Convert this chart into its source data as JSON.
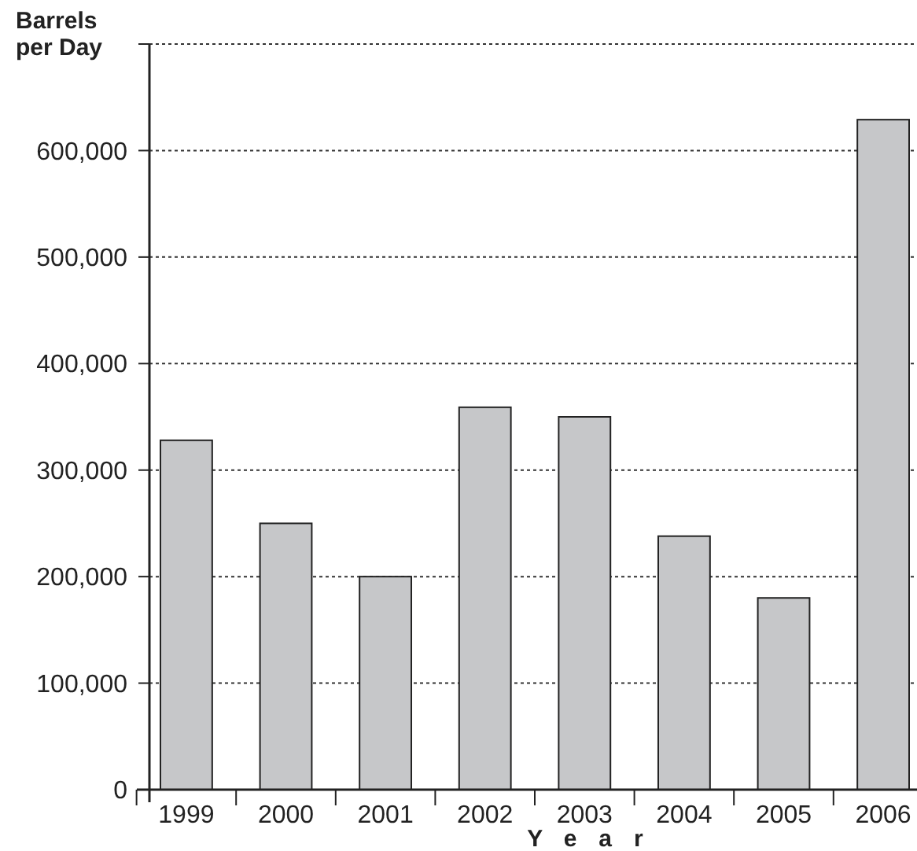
{
  "chart_data": {
    "type": "bar",
    "ylabel": "Barrels\nper Day",
    "xlabel": "Year",
    "categories": [
      "1999",
      "2000",
      "2001",
      "2002",
      "2003",
      "2004",
      "2005",
      "2006"
    ],
    "values": [
      328000,
      250000,
      200000,
      359000,
      350000,
      238000,
      180000,
      629000
    ],
    "color": "#c6c7c9",
    "ylim": [
      0,
      700000
    ],
    "yticks": [
      {
        "value": 0,
        "label": "0"
      },
      {
        "value": 100000,
        "label": "100,000"
      },
      {
        "value": 200000,
        "label": "200,000"
      },
      {
        "value": 300000,
        "label": "300,000"
      },
      {
        "value": 400000,
        "label": "400,000"
      },
      {
        "value": 500000,
        "label": "500,000"
      },
      {
        "value": 600000,
        "label": "600,000"
      },
      {
        "value": 700000,
        "label": null
      }
    ],
    "grid": "y"
  }
}
